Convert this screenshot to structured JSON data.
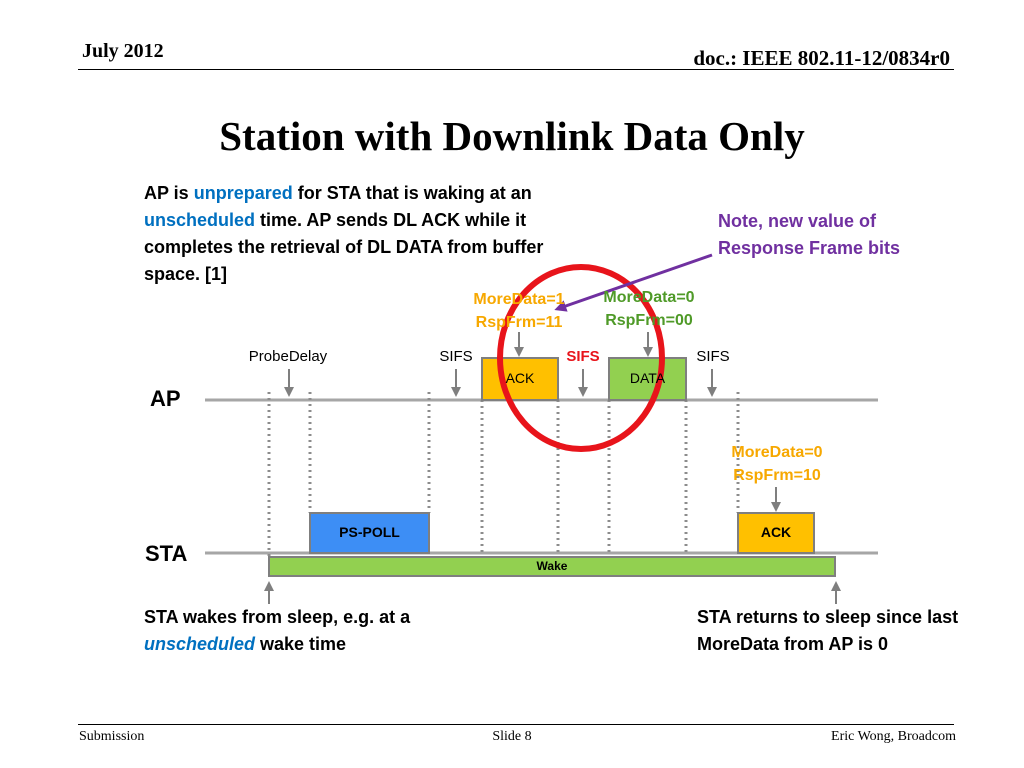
{
  "header": {
    "date": "July 2012",
    "doc": "doc.: IEEE 802.11-12/0834r0"
  },
  "title": "Station with Downlink Data Only",
  "description": {
    "p1": "AP is ",
    "p1_hl": "unprepared",
    "p2": " for STA that is waking at an ",
    "p2_hl": "unscheduled",
    "p3": " time. AP sends DL ACK while it completes the retrieval of DL DATA from buffer space. [1]"
  },
  "note": "Note, new value of Response Frame bits",
  "diagram": {
    "ap_label": "AP",
    "sta_label": "STA",
    "probe_delay": "ProbeDelay",
    "sifs1": "SIFS",
    "sifs2": "SIFS",
    "sifs3": "SIFS",
    "ack_ap": "ACK",
    "data_ap": "DATA",
    "ps_poll": "PS-POLL",
    "ack_sta": "ACK",
    "wake": "Wake",
    "ack_more": "MoreData=1",
    "ack_rsp": "RspFrm=11",
    "data_more": "MoreData=0",
    "data_rsp": "RspFrm=00",
    "sta_more": "MoreData=0",
    "sta_rsp": "RspFrm=10",
    "colors": {
      "orange_frame": "#ffc000",
      "green_frame": "#92d050",
      "blue_frame": "#3d8ef5",
      "timeline": "#a6a6a6",
      "circle": "#e8141b",
      "note_arrow": "#7030a0"
    }
  },
  "wake_note": {
    "t1": "STA wakes from sleep, e.g. at a ",
    "hl": "unscheduled",
    "t2": " wake time"
  },
  "sleep_note": "STA returns to sleep since last MoreData from AP is 0",
  "footer": {
    "left": "Submission",
    "center": "Slide 8",
    "right": "Eric Wong, Broadcom"
  }
}
